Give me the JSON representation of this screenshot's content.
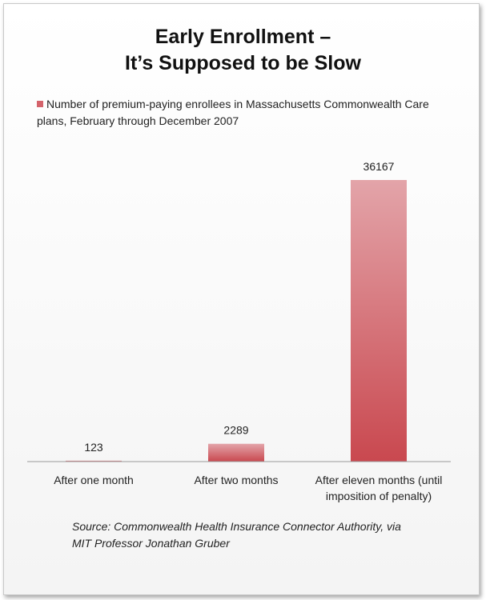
{
  "chart_data": {
    "type": "bar",
    "title_lines": [
      "Early Enrollment –",
      "It’s Supposed to be Slow"
    ],
    "legend": {
      "label": "Number of premium-paying enrollees in Massachusetts Commonwealth Care plans, February through December 2007",
      "color": "#d4636b",
      "position": "top-left"
    },
    "categories": [
      [
        "After one month"
      ],
      [
        "After two months"
      ],
      [
        "After eleven months (until",
        "imposition of penalty)"
      ]
    ],
    "values": [
      123,
      2289,
      36167
    ],
    "value_labels": [
      "123",
      "2289",
      "36167"
    ],
    "ylim": [
      0,
      36167
    ],
    "grid": false,
    "xlabel": "",
    "ylabel": "",
    "bar_color_top": "#e3a4a9",
    "bar_color_bottom": "#c9484f",
    "source_lines": [
      "Source: Commonwealth Health Insurance Connector Authority, via",
      "MIT Professor Jonathan Gruber"
    ]
  }
}
